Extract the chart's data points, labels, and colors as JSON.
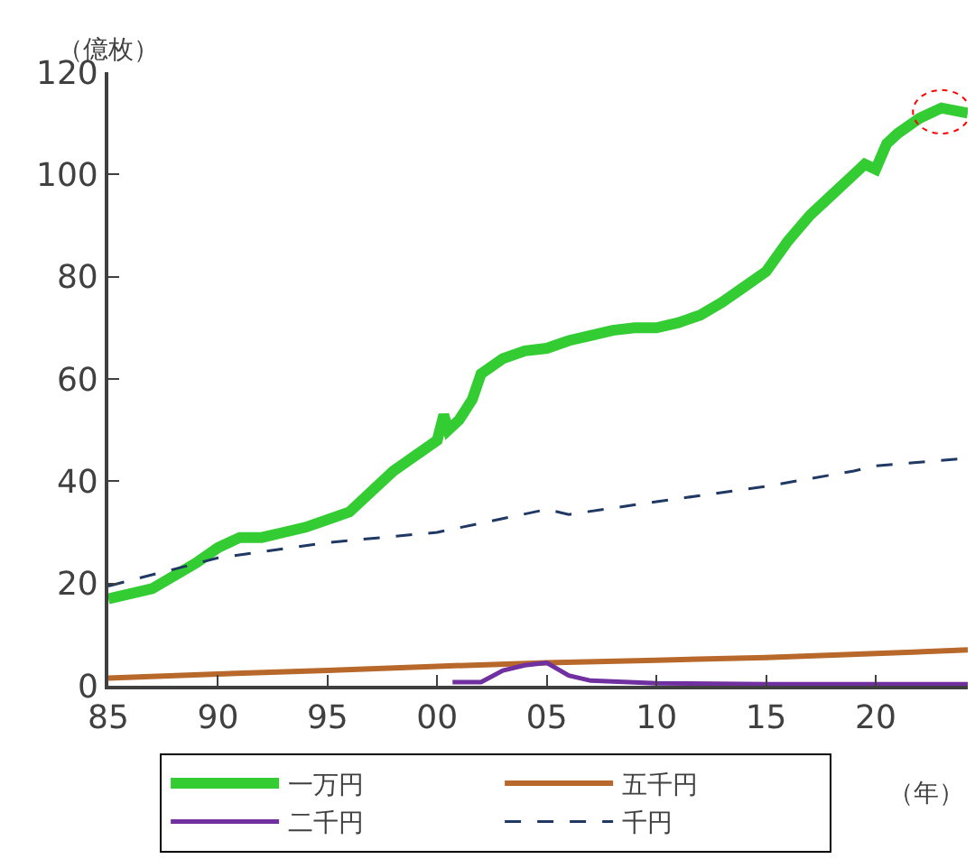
{
  "chart_data": {
    "type": "line",
    "ylabel": "（億枚）",
    "xlabel": "（年）",
    "xlim": [
      1985,
      2024.2
    ],
    "xticks": [
      {
        "value": 1985,
        "label": "85"
      },
      {
        "value": 1990,
        "label": "90"
      },
      {
        "value": 1995,
        "label": "95"
      },
      {
        "value": 2000,
        "label": "00"
      },
      {
        "value": 2005,
        "label": "05"
      },
      {
        "value": 2010,
        "label": "10"
      },
      {
        "value": 2015,
        "label": "15"
      },
      {
        "value": 2020,
        "label": "20"
      }
    ],
    "ylim": [
      0,
      120
    ],
    "yticks": [
      0,
      20,
      40,
      60,
      80,
      100,
      120
    ],
    "legend": "bottom",
    "marker": "none",
    "series": [
      {
        "name": "一万円",
        "color": "#33cc33",
        "line_style": "solid",
        "x": [
          1985,
          1987,
          1989,
          1990,
          1991,
          1992,
          1993,
          1994,
          1995,
          1996,
          1997,
          1998,
          1999,
          2000,
          2000.3,
          2000.5,
          2001,
          2001.6,
          2002,
          2003,
          2004,
          2005,
          2006,
          2007,
          2008,
          2009,
          2010,
          2011,
          2012,
          2013,
          2014,
          2015,
          2016,
          2017,
          2018,
          2019,
          2019.5,
          2020,
          2020.5,
          2021,
          2022,
          2023,
          2024.2
        ],
        "values": [
          17,
          19,
          24,
          27,
          29,
          29,
          30,
          31,
          32.5,
          34,
          38,
          42,
          45,
          48,
          53,
          50,
          52,
          56,
          61,
          64,
          65.5,
          66,
          67.5,
          68.5,
          69.5,
          70,
          70,
          71,
          72.5,
          75,
          78,
          81,
          87,
          92,
          96,
          100,
          102,
          101,
          106,
          108,
          111,
          113,
          112
        ]
      },
      {
        "name": "五千円",
        "color": "#b8682a",
        "line_style": "solid",
        "x": [
          1985,
          1990,
          1995,
          2000,
          2005,
          2010,
          2015,
          2020,
          2024.2
        ],
        "values": [
          1.5,
          2.3,
          3,
          3.8,
          4.5,
          5,
          5.5,
          6.3,
          7
        ]
      },
      {
        "name": "二千円",
        "color": "#7030a0",
        "line_style": "solid",
        "x": [
          2000.7,
          2002,
          2003,
          2004,
          2005,
          2006,
          2007,
          2010,
          2015,
          2024.2
        ],
        "values": [
          0.7,
          0.7,
          3,
          4,
          4.5,
          2,
          1,
          0.5,
          0.3,
          0.3
        ]
      },
      {
        "name": "千円",
        "color": "#1f3864",
        "line_style": "dashed",
        "x": [
          1985,
          1990,
          1995,
          2000,
          2005,
          2006,
          2010,
          2015,
          2019,
          2020,
          2024.2
        ],
        "values": [
          19.5,
          25,
          28,
          30,
          34.5,
          33.5,
          36,
          39,
          42,
          43,
          44.5
        ]
      }
    ]
  }
}
